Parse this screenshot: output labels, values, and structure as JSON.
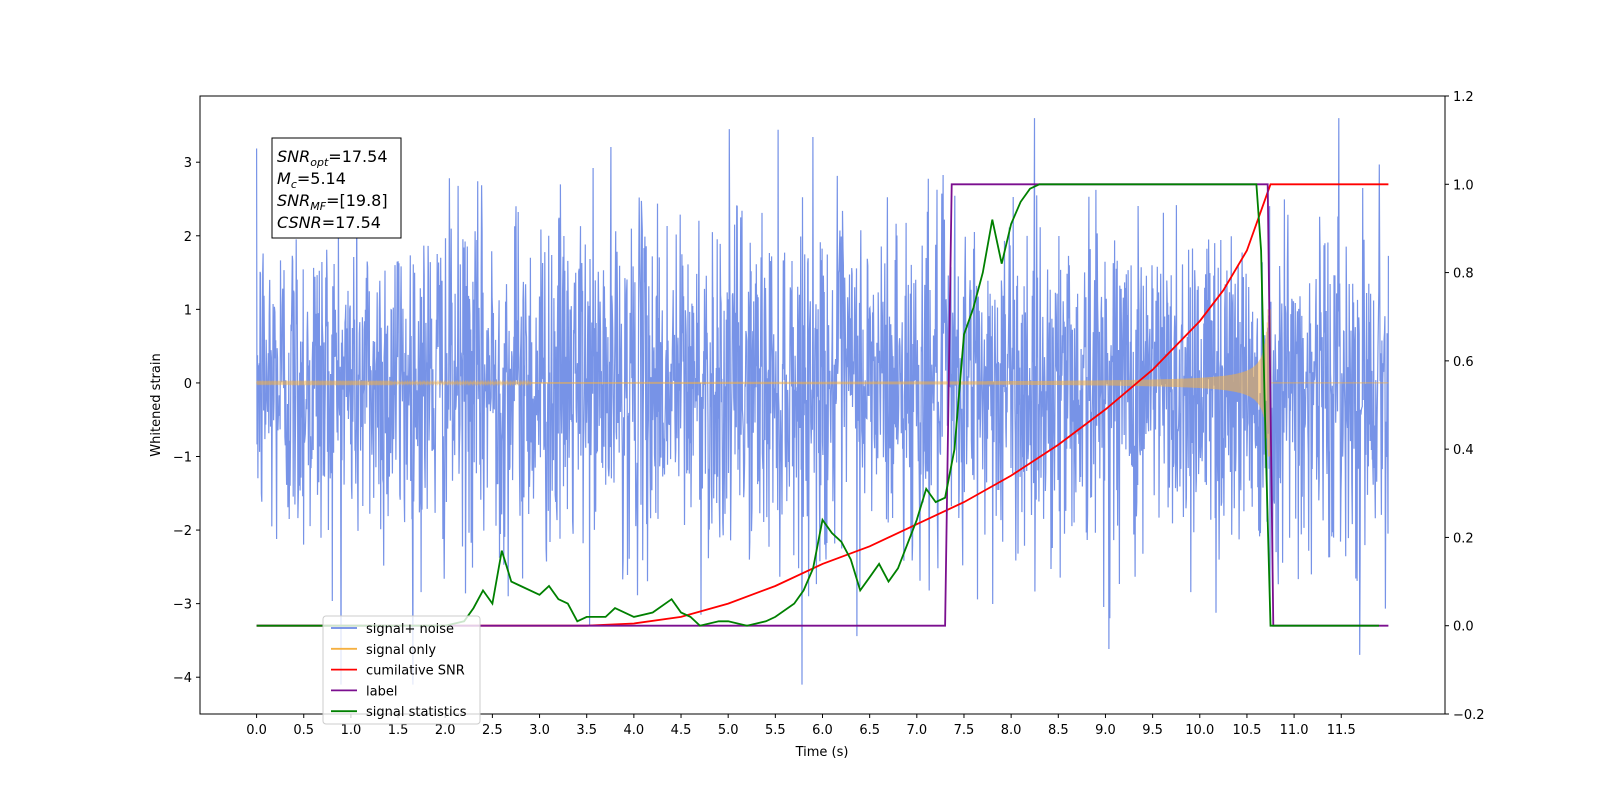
{
  "chart_data": {
    "type": "line",
    "xlabel": "Time (s)",
    "ylabel": "Whitened strain",
    "xlim": [
      -0.6,
      12.6
    ],
    "ylim": [
      -4.5,
      3.9
    ],
    "y2lim": [
      -0.2,
      1.2
    ],
    "xticks": [
      "0.0",
      "0.5",
      "1.0",
      "1.5",
      "2.0",
      "2.5",
      "3.0",
      "3.5",
      "4.0",
      "4.5",
      "5.0",
      "5.5",
      "6.0",
      "6.5",
      "7.0",
      "7.5",
      "8.0",
      "8.5",
      "9.0",
      "9.5",
      "10.0",
      "10.5",
      "11.0",
      "11.5"
    ],
    "yticks": [
      "3",
      "2",
      "1",
      "0",
      "−1",
      "−2",
      "−3",
      "−4"
    ],
    "y2ticks": [
      "1.2",
      "1.0",
      "0.8",
      "0.6",
      "0.4",
      "0.2",
      "0.0",
      "−0.2"
    ],
    "grid": false,
    "legend_position": "bottom-left",
    "annotation_box": {
      "lines": [
        {
          "base": "SNR",
          "sub": "opt",
          "rest": "=17.54"
        },
        {
          "base": "M",
          "sub": "c",
          "rest": "=5.14"
        },
        {
          "base": "SNR",
          "sub": "MF",
          "rest": "=[19.8]"
        },
        {
          "base": "CSNR",
          "sub": "",
          "rest": "=17.54"
        }
      ]
    },
    "series": [
      {
        "name": "signal+ noise",
        "color": "#6b8ae5",
        "axis": "left",
        "kind": "noise",
        "x_range": [
          0,
          12
        ],
        "sigma": 1.15,
        "envelope_max": 0.95,
        "y_range": [
          -4.1,
          3.6
        ]
      },
      {
        "name": "signal only",
        "color": "#f5b041",
        "axis": "left",
        "kind": "chirp",
        "x_range": [
          0,
          10.75
        ],
        "amplitude_start": 0.0,
        "amplitude_end": 1.0
      },
      {
        "name": "cumilative SNR",
        "color": "#ff0000",
        "axis": "right",
        "x": [
          0,
          3.5,
          4.0,
          4.5,
          5.0,
          5.5,
          6.0,
          6.5,
          7.0,
          7.5,
          8.0,
          8.5,
          9.0,
          9.5,
          10.0,
          10.25,
          10.5,
          10.75,
          12.0
        ],
        "y": [
          0.0,
          0.0,
          0.005,
          0.02,
          0.05,
          0.09,
          0.14,
          0.18,
          0.23,
          0.28,
          0.34,
          0.41,
          0.49,
          0.58,
          0.69,
          0.76,
          0.85,
          1.0,
          1.0
        ]
      },
      {
        "name": "label",
        "color": "#7b0f8f",
        "axis": "right",
        "x": [
          0,
          7.3,
          7.37,
          10.72,
          10.78,
          12.0
        ],
        "y": [
          0,
          0,
          1,
          1,
          0,
          0
        ]
      },
      {
        "name": "signal statistics",
        "color": "#008000",
        "axis": "right",
        "x": [
          0,
          2.0,
          2.2,
          2.3,
          2.4,
          2.5,
          2.6,
          2.7,
          2.8,
          3.0,
          3.1,
          3.2,
          3.3,
          3.4,
          3.5,
          3.7,
          3.8,
          4.0,
          4.2,
          4.4,
          4.5,
          4.6,
          4.7,
          4.9,
          5.0,
          5.2,
          5.4,
          5.5,
          5.7,
          5.8,
          5.9,
          6.0,
          6.1,
          6.2,
          6.3,
          6.4,
          6.5,
          6.6,
          6.7,
          6.8,
          7.0,
          7.1,
          7.2,
          7.3,
          7.4,
          7.5,
          7.6,
          7.7,
          7.8,
          7.9,
          8.0,
          8.1,
          8.2,
          8.3,
          8.4,
          10.6,
          10.65,
          10.7,
          10.75,
          10.8,
          11.0,
          11.5,
          11.9
        ],
        "y": [
          0.0,
          0.0,
          0.01,
          0.04,
          0.08,
          0.05,
          0.17,
          0.1,
          0.09,
          0.07,
          0.09,
          0.06,
          0.05,
          0.01,
          0.02,
          0.02,
          0.04,
          0.02,
          0.03,
          0.06,
          0.03,
          0.02,
          0.0,
          0.01,
          0.01,
          0.0,
          0.01,
          0.02,
          0.05,
          0.08,
          0.13,
          0.24,
          0.21,
          0.19,
          0.15,
          0.08,
          0.11,
          0.14,
          0.1,
          0.13,
          0.24,
          0.31,
          0.28,
          0.29,
          0.4,
          0.66,
          0.72,
          0.8,
          0.92,
          0.82,
          0.91,
          0.96,
          0.99,
          1.0,
          1.0,
          1.0,
          0.85,
          0.4,
          0.0,
          0.0,
          0.0,
          0.0,
          0.0
        ]
      }
    ]
  }
}
